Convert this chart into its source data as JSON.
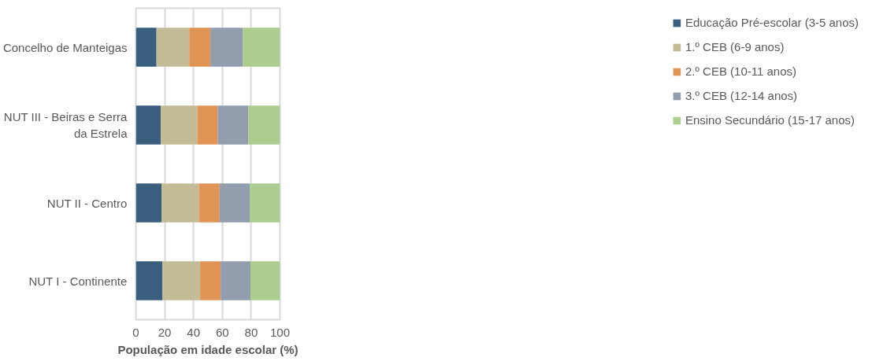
{
  "chart_data": {
    "type": "bar",
    "orientation": "horizontal",
    "stacked": true,
    "categories": [
      "Concelho de Manteigas",
      "NUT III - Beiras e Serra da Estrela",
      "NUT II - Centro",
      "NUT I - Continente"
    ],
    "series": [
      {
        "name": "Educação Pré-escolar (3-5 anos)",
        "color": "#3a5e7e",
        "values": [
          14.3,
          17.2,
          17.8,
          18.5
        ]
      },
      {
        "name": "1.º CEB (6-9 anos)",
        "color": "#c4bc96",
        "values": [
          22.7,
          25.4,
          25.9,
          26.1
        ]
      },
      {
        "name": "2.º CEB (10-11 anos)",
        "color": "#e09456",
        "values": [
          14.7,
          14.2,
          14.4,
          14.2
        ]
      },
      {
        "name": "3.º CEB (12-14 anos)",
        "color": "#929dae",
        "values": [
          22.6,
          21.2,
          20.9,
          20.7
        ]
      },
      {
        "name": "Ensino Secundário (15-17 anos)",
        "color": "#abcd8f",
        "values": [
          25.7,
          22.0,
          21.0,
          20.5
        ]
      }
    ],
    "xlabel": "População em idade escolar (%)",
    "xlim": [
      0,
      100
    ],
    "xticks": [
      0,
      20,
      40,
      60,
      80,
      100
    ],
    "grid": "x",
    "legend": "right"
  }
}
